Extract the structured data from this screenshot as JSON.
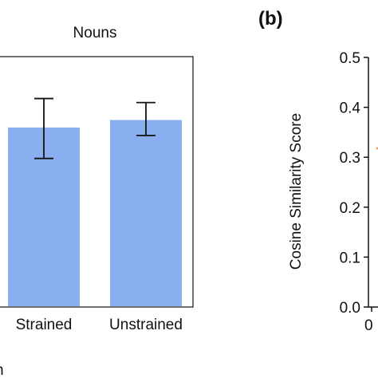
{
  "chart_data": [
    {
      "type": "bar",
      "title": "Nouns",
      "categories": [
        "Strained",
        "Unstrained"
      ],
      "values": [
        0.358,
        0.373
      ],
      "error": [
        {
          "low": 0.296,
          "high": 0.416
        },
        {
          "low": 0.342,
          "high": 0.408
        }
      ],
      "xlabel": "",
      "ylabel": "",
      "ylim": [
        0.0,
        0.5
      ],
      "grid": false,
      "bar_color": "#8aaff0",
      "partial_label": "n"
    },
    {
      "type": "bar",
      "panel_label": "(b)",
      "ylabel": "Cosine Similarity Score",
      "ylim": [
        0.0,
        0.5
      ],
      "yticks": [
        "0.0",
        "0.1",
        "0.2",
        "0.3",
        "0.4",
        "0.5"
      ],
      "xticks": [
        "0"
      ],
      "grid": false,
      "accent_color": "#e8a070"
    }
  ]
}
